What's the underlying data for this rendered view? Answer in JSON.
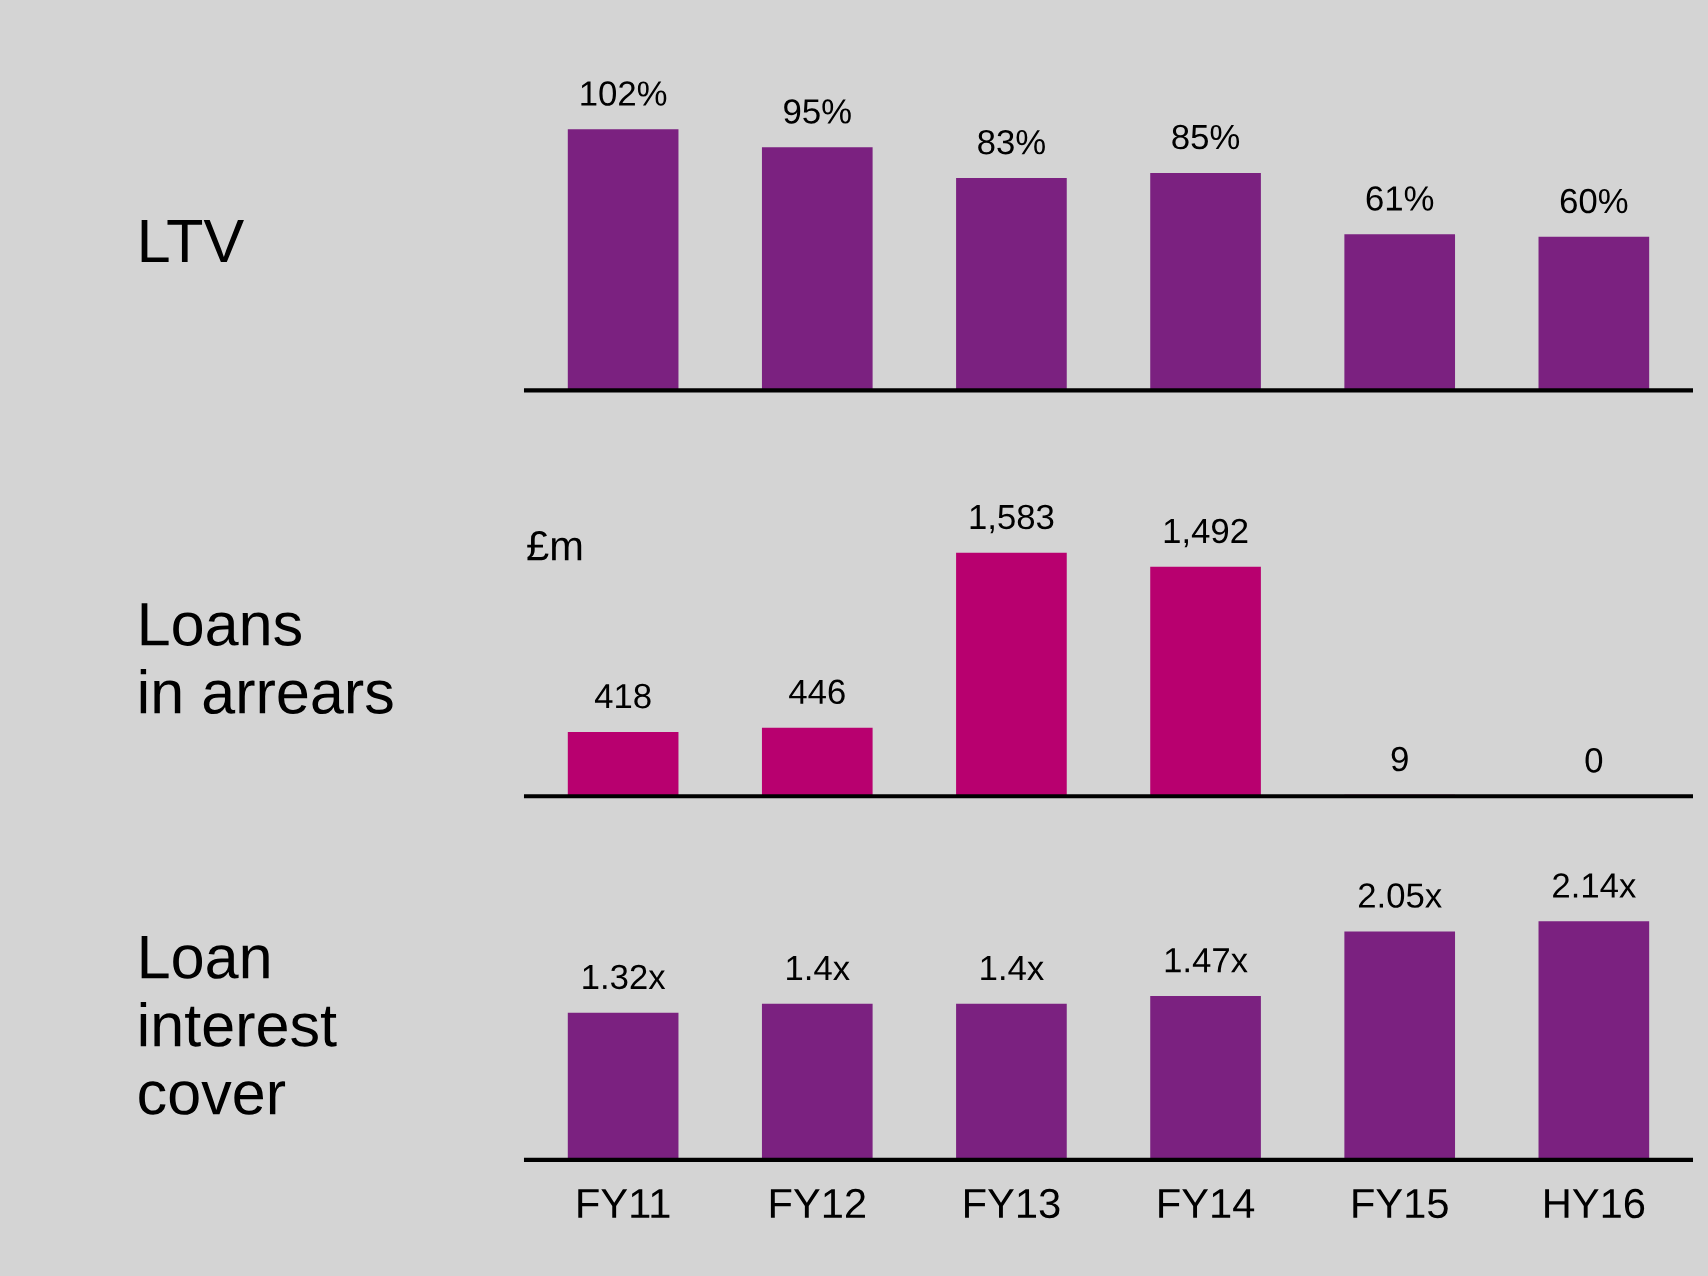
{
  "chart_data": [
    {
      "type": "bar",
      "title": "LTV",
      "categories": [
        null,
        null,
        null,
        null,
        null,
        null
      ],
      "values": [
        102,
        95,
        83,
        85,
        61,
        60
      ],
      "value_labels": [
        "102%",
        "95%",
        "83%",
        "85%",
        "61%",
        "60%"
      ],
      "color": "#7b2180",
      "tick_labels": false,
      "grid": false,
      "legend": false
    },
    {
      "type": "bar",
      "title": "Loans\nin arrears",
      "categories": [
        null,
        null,
        null,
        null,
        null,
        null
      ],
      "values": [
        418,
        446,
        1583,
        1492,
        9,
        0
      ],
      "value_labels": [
        "418",
        "446",
        "1,583",
        "1,492",
        "9",
        "0"
      ],
      "color": "#b8006f",
      "annotations": [
        "£m"
      ],
      "tick_labels": false,
      "grid": false,
      "legend": false
    },
    {
      "type": "bar",
      "title": "Loan\ninterest\ncover",
      "categories": [
        "FY11",
        "FY12",
        "FY13",
        "FY14",
        "FY15",
        "HY16"
      ],
      "values": [
        1.32,
        1.4,
        1.4,
        1.47,
        2.05,
        2.14
      ],
      "value_labels": [
        "1.32x",
        "1.4x",
        "1.4x",
        "1.47x",
        "2.05x",
        "2.14x"
      ],
      "color": "#7b2180",
      "tick_labels": "x",
      "grid": false,
      "legend": false
    }
  ]
}
